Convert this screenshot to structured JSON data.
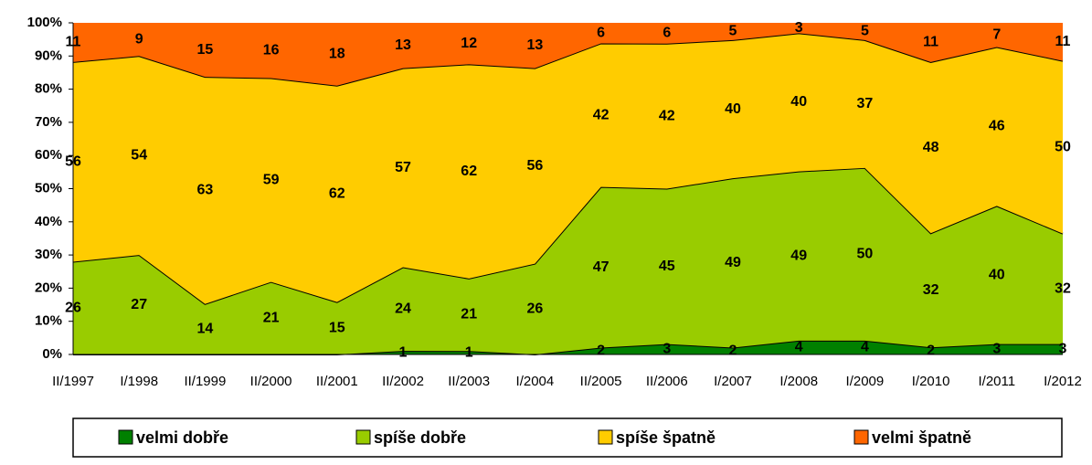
{
  "chart_data": {
    "type": "area",
    "stack": "percent",
    "categories": [
      "II/1997",
      "I/1998",
      "II/1999",
      "II/2000",
      "II/2001",
      "II/2002",
      "II/2003",
      "I/2004",
      "II/2005",
      "II/2006",
      "I/2007",
      "I/2008",
      "I/2009",
      "I/2010",
      "I/2011",
      "I/2012"
    ],
    "series": [
      {
        "name": "velmi dobře",
        "color": "#008000",
        "values": [
          0,
          0,
          0,
          0,
          0,
          1,
          1,
          0,
          2,
          3,
          2,
          4,
          4,
          2,
          3,
          3
        ]
      },
      {
        "name": "spíše dobře",
        "color": "#99cc00",
        "values": [
          26,
          27,
          14,
          21,
          15,
          24,
          21,
          26,
          47,
          45,
          49,
          49,
          50,
          32,
          40,
          32
        ]
      },
      {
        "name": "spíše špatně",
        "color": "#ffcc00",
        "values": [
          56,
          54,
          63,
          59,
          62,
          57,
          62,
          56,
          42,
          42,
          40,
          40,
          37,
          48,
          46,
          50
        ]
      },
      {
        "name": "velmi špatně",
        "color": "#ff6600",
        "values": [
          11,
          9,
          15,
          16,
          18,
          13,
          12,
          13,
          6,
          6,
          5,
          3,
          5,
          11,
          7,
          11
        ]
      }
    ],
    "ylim": [
      0,
      100
    ],
    "yticks": [
      {
        "value": 0,
        "label": "0%"
      },
      {
        "value": 10,
        "label": "10%"
      },
      {
        "value": 20,
        "label": "20%"
      },
      {
        "value": 30,
        "label": "30%"
      },
      {
        "value": 40,
        "label": "40%"
      },
      {
        "value": 50,
        "label": "50%"
      },
      {
        "value": 60,
        "label": "60%"
      },
      {
        "value": 70,
        "label": "70%"
      },
      {
        "value": 80,
        "label": "80%"
      },
      {
        "value": 90,
        "label": "90%"
      },
      {
        "value": 100,
        "label": "100%"
      }
    ],
    "legend": "bottom"
  }
}
